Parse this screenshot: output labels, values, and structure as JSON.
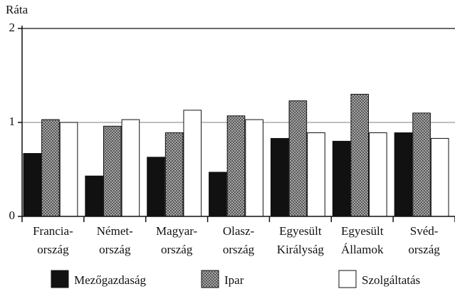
{
  "chart_data": {
    "type": "bar",
    "y_axis_label": "Ráta",
    "categories": [
      [
        "Francia-",
        "ország"
      ],
      [
        "Német-",
        "ország"
      ],
      [
        "Magyar-",
        "ország"
      ],
      [
        "Olasz-",
        "ország"
      ],
      [
        "Egyesült",
        "Királyság"
      ],
      [
        "Egyesült",
        "Államok"
      ],
      [
        "Svéd-",
        "ország"
      ]
    ],
    "series": [
      {
        "name": "Mezőgazdaság",
        "color": "#111111",
        "hatch": false,
        "values": [
          0.67,
          0.43,
          0.63,
          0.47,
          0.83,
          0.8,
          0.89
        ]
      },
      {
        "name": "Ipar",
        "color": "#9a9a9a",
        "hatch": true,
        "values": [
          1.03,
          0.96,
          0.89,
          1.07,
          1.23,
          1.3,
          1.1
        ]
      },
      {
        "name": "Szolgáltatás",
        "color": "#ffffff",
        "hatch": false,
        "values": [
          1.0,
          1.03,
          1.13,
          1.03,
          0.89,
          0.89,
          0.83
        ]
      }
    ],
    "ylim": [
      0,
      2
    ],
    "yticks": [
      0,
      1,
      2
    ],
    "grid": true
  }
}
